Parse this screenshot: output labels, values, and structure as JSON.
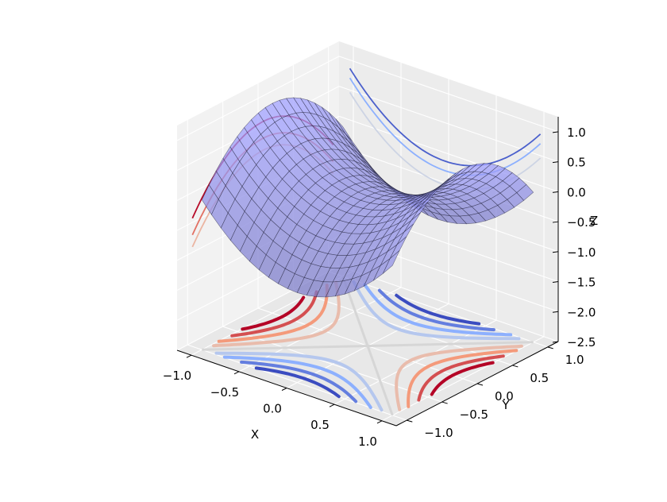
{
  "chart_data": {
    "type": "surface",
    "surface": {
      "function": "x^2 - y^2",
      "x_range": [
        -1.0,
        1.0
      ],
      "y_range": [
        -1.0,
        1.0
      ],
      "grid": 21,
      "color": "#b3b3ff",
      "alpha": 0.75,
      "wire_color": "#1c1c30"
    },
    "contour_levels": [
      -0.8,
      -0.6,
      -0.4,
      -0.2,
      0.2,
      0.4,
      0.6,
      0.8
    ],
    "contour_colormap": "coolwarm",
    "projections": {
      "z_floor": -2.5,
      "x_wall": -1.1,
      "y_wall": 1.1
    },
    "axes": {
      "xlabel": "X",
      "ylabel": "Y",
      "zlabel": "Z",
      "xlim": [
        -1.15,
        1.15
      ],
      "ylim": [
        -1.15,
        1.15
      ],
      "zlim": [
        -2.5,
        1.25
      ],
      "x_ticks": [
        "−1.0",
        "−0.5",
        "0.0",
        "0.5",
        "1.0"
      ],
      "x_tick_values": [
        -1.0,
        -0.5,
        0.0,
        0.5,
        1.0
      ],
      "y_ticks": [
        "−1.0",
        "−0.5",
        "0.0",
        "0.5",
        "1.0"
      ],
      "y_tick_values": [
        -1.0,
        -0.5,
        0.0,
        0.5,
        1.0
      ],
      "z_ticks": [
        "−2.5",
        "−2.0",
        "−1.5",
        "−1.0",
        "−0.5",
        "0.0",
        "0.5",
        "1.0"
      ],
      "z_tick_values": [
        -2.5,
        -2.0,
        -1.5,
        -1.0,
        -0.5,
        0.0,
        0.5,
        1.0
      ],
      "grid": true
    }
  }
}
